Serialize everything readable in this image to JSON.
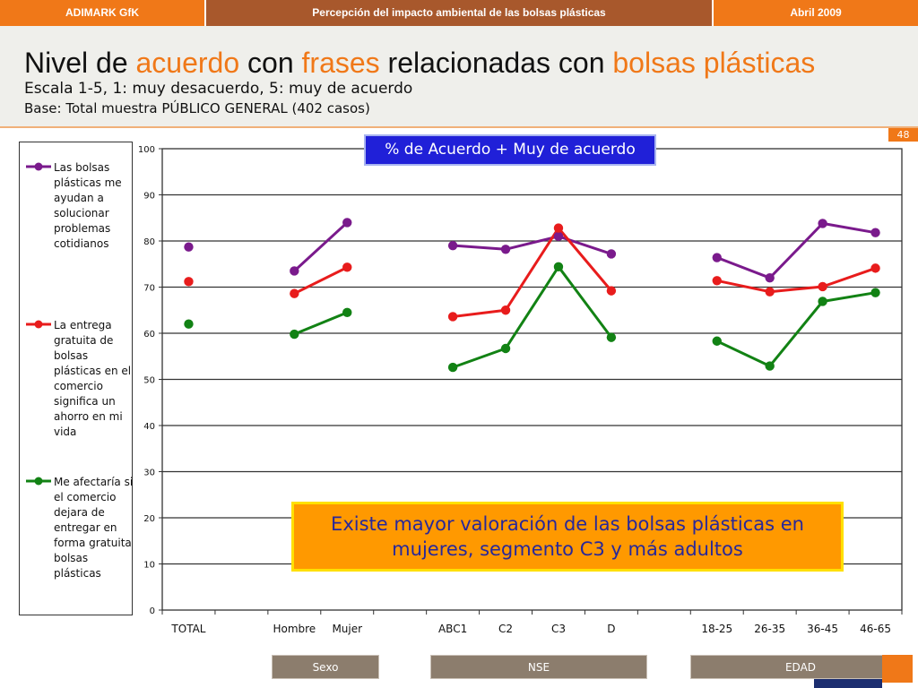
{
  "topbar": {
    "left": "ADIMARK GfK",
    "center": "Percepción del impacto ambiental de las bolsas plásticas",
    "right": "Abril 2009"
  },
  "header": {
    "title_parts": [
      "Nivel de ",
      "acuerdo",
      " con ",
      "frases",
      " relacionadas con ",
      "bolsas plásticas"
    ],
    "subtitle": "Escala 1-5, 1: muy desacuerdo, 5: muy de acuerdo",
    "base": "Base: Total muestra PÚBLICO GENERAL (402 casos)",
    "accent_color": "#f07818"
  },
  "page_number": "48",
  "chart_title": "% de Acuerdo + Muy de acuerdo",
  "callout": "Existe mayor valoración de las bolsas plásticas en mujeres, segmento C3 y más adultos",
  "groups": [
    "Sexo",
    "NSE",
    "EDAD"
  ],
  "chart_data": {
    "type": "line",
    "ylim": [
      0,
      100
    ],
    "y_ticks": [
      0,
      10,
      20,
      30,
      40,
      50,
      60,
      70,
      80,
      90,
      100
    ],
    "grid": true,
    "categories": [
      "TOTAL",
      "",
      "Hombre",
      "Mujer",
      "",
      "ABC1",
      "C2",
      "C3",
      "D",
      "",
      "18-25",
      "26-35",
      "36-45",
      "46-65"
    ],
    "segments": [
      [
        0,
        0
      ],
      [
        2,
        3
      ],
      [
        5,
        8
      ],
      [
        10,
        13
      ]
    ],
    "series": [
      {
        "name": "Las bolsas plásticas me ayudan a solucionar problemas cotidianos",
        "color": "#7a1a8c",
        "values": [
          78.7,
          null,
          73.5,
          84.0,
          null,
          79.0,
          78.2,
          81.0,
          77.2,
          null,
          76.4,
          72.0,
          83.8,
          81.8
        ]
      },
      {
        "name": "La entrega gratuita de bolsas plásticas en el comercio significa un ahorro en mi vida",
        "color": "#e81c1c",
        "values": [
          71.2,
          null,
          68.6,
          74.3,
          null,
          63.6,
          65.0,
          82.8,
          69.2,
          null,
          71.4,
          69.0,
          70.1,
          74.1
        ]
      },
      {
        "name": "Me afectaría si el comercio dejara de entregar en forma gratuita bolsas plásticas",
        "color": "#128214",
        "values": [
          62.0,
          null,
          59.8,
          64.5,
          null,
          52.6,
          56.7,
          74.4,
          59.1,
          null,
          58.3,
          52.9,
          66.9,
          68.8
        ]
      }
    ]
  }
}
